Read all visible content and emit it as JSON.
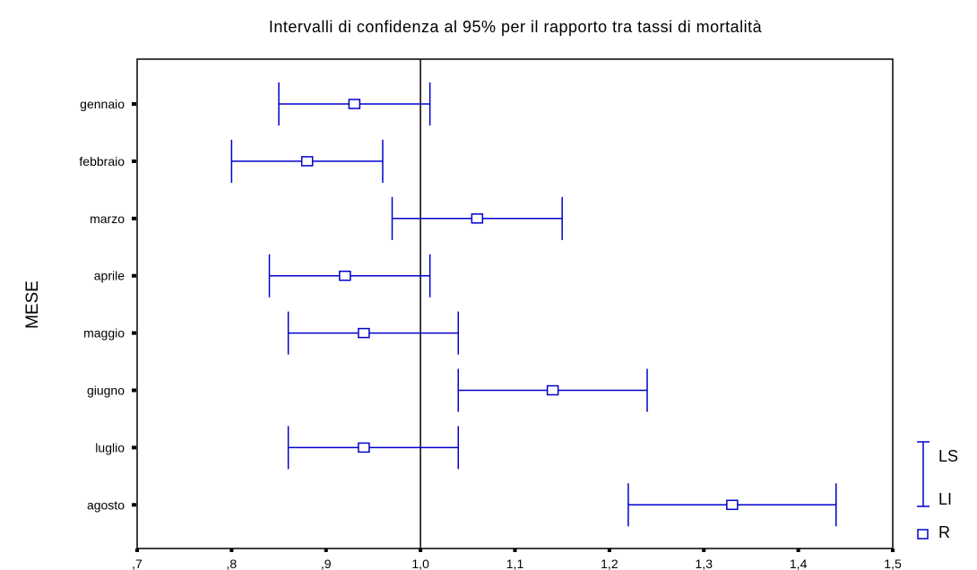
{
  "chart_data": {
    "type": "errorbar",
    "title": "Intervalli di confidenza al 95% per il rapporto tra tassi di mortalità",
    "xlabel": "",
    "ylabel": "MESE",
    "xlim": [
      0.7,
      1.5
    ],
    "x_ticks": [
      0.7,
      0.8,
      0.9,
      1.0,
      1.1,
      1.2,
      1.3,
      1.4,
      1.5
    ],
    "x_tick_labels": [
      ",7",
      ",8",
      ",9",
      "1,0",
      "1,1",
      "1,2",
      "1,3",
      "1,4",
      "1,5"
    ],
    "reference_line": 1.0,
    "categories": [
      "gennaio",
      "febbraio",
      "marzo",
      "aprile",
      "maggio",
      "giugno",
      "luglio",
      "agosto"
    ],
    "R": [
      0.93,
      0.88,
      1.06,
      0.92,
      0.94,
      1.14,
      0.94,
      1.33
    ],
    "LI": [
      0.85,
      0.8,
      0.97,
      0.84,
      0.86,
      1.04,
      0.86,
      1.22
    ],
    "LS": [
      1.01,
      0.96,
      1.15,
      1.01,
      1.04,
      1.24,
      1.04,
      1.44
    ],
    "legend": {
      "items": [
        "LS",
        "LI",
        "R"
      ],
      "position": "bottom-right"
    },
    "colors": {
      "series": "#0000cc",
      "axis": "#000000"
    },
    "grid": false
  }
}
